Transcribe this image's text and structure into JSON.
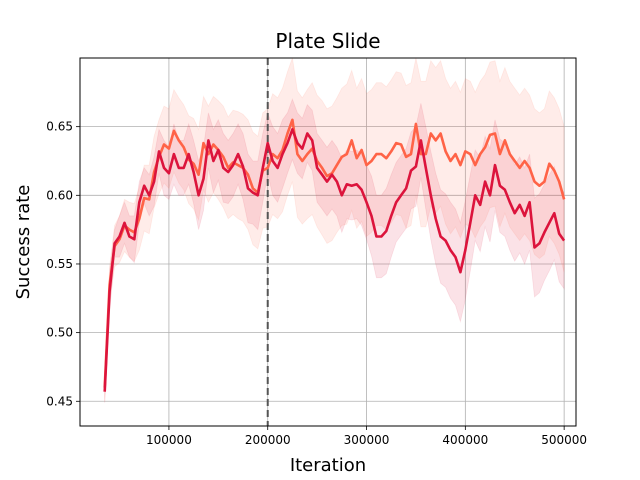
{
  "chart_data": {
    "type": "line",
    "title": "Plate Slide",
    "xlabel": "Iteration",
    "ylabel": "Success rate",
    "xlim": [
      10000,
      512000
    ],
    "ylim": [
      0.432,
      0.7
    ],
    "xticks": [
      100000,
      200000,
      300000,
      400000,
      500000
    ],
    "xtick_labels": [
      "100000",
      "200000",
      "300000",
      "400000",
      "500000"
    ],
    "yticks": [
      0.45,
      0.5,
      0.55,
      0.6,
      0.65
    ],
    "ytick_labels": [
      "0.45",
      "0.50",
      "0.55",
      "0.60",
      "0.65"
    ],
    "grid": true,
    "vline": {
      "x": 200000,
      "style": "dashed",
      "color": "#555555"
    },
    "series": [
      {
        "color": "#dc143c",
        "band_color": "#dc143c",
        "band_opacity": 0.12,
        "x": [
          35000,
          40000,
          45000,
          50000,
          55000,
          60000,
          65000,
          70000,
          75000,
          80000,
          85000,
          90000,
          95000,
          100000,
          105000,
          110000,
          115000,
          120000,
          125000,
          130000,
          135000,
          140000,
          145000,
          150000,
          155000,
          160000,
          165000,
          170000,
          175000,
          180000,
          185000,
          190000,
          195000,
          200000,
          205000,
          210000,
          215000,
          220000,
          225000,
          230000,
          235000,
          240000,
          245000,
          250000,
          255000,
          260000,
          265000,
          270000,
          275000,
          280000,
          285000,
          290000,
          295000,
          300000,
          305000,
          310000,
          315000,
          320000,
          325000,
          330000,
          335000,
          340000,
          345000,
          350000,
          355000,
          360000,
          365000,
          370000,
          375000,
          380000,
          385000,
          390000,
          395000,
          400000,
          405000,
          410000,
          415000,
          420000,
          425000,
          430000,
          435000,
          440000,
          445000,
          450000,
          455000,
          460000,
          465000,
          470000,
          475000,
          480000,
          485000,
          490000,
          495000,
          500000
        ],
        "y": [
          0.457,
          0.53,
          0.565,
          0.57,
          0.58,
          0.57,
          0.568,
          0.595,
          0.607,
          0.6,
          0.61,
          0.632,
          0.62,
          0.616,
          0.63,
          0.62,
          0.62,
          0.63,
          0.617,
          0.6,
          0.612,
          0.64,
          0.625,
          0.633,
          0.62,
          0.617,
          0.622,
          0.63,
          0.621,
          0.605,
          0.602,
          0.6,
          0.62,
          0.638,
          0.625,
          0.62,
          0.63,
          0.638,
          0.648,
          0.638,
          0.634,
          0.645,
          0.64,
          0.62,
          0.615,
          0.61,
          0.615,
          0.61,
          0.6,
          0.608,
          0.607,
          0.608,
          0.604,
          0.595,
          0.585,
          0.57,
          0.57,
          0.574,
          0.585,
          0.595,
          0.6,
          0.605,
          0.618,
          0.621,
          0.64,
          0.62,
          0.6,
          0.583,
          0.57,
          0.567,
          0.56,
          0.555,
          0.544,
          0.56,
          0.58,
          0.6,
          0.593,
          0.61,
          0.6,
          0.622,
          0.607,
          0.604,
          0.595,
          0.587,
          0.593,
          0.585,
          0.595,
          0.562,
          0.565,
          0.573,
          0.58,
          0.587,
          0.572,
          0.567
        ],
        "upper": [
          0.465,
          0.545,
          0.575,
          0.585,
          0.595,
          0.585,
          0.585,
          0.61,
          0.62,
          0.615,
          0.628,
          0.648,
          0.64,
          0.635,
          0.652,
          0.64,
          0.64,
          0.652,
          0.64,
          0.625,
          0.635,
          0.66,
          0.648,
          0.655,
          0.645,
          0.64,
          0.645,
          0.652,
          0.645,
          0.63,
          0.625,
          0.625,
          0.645,
          0.66,
          0.65,
          0.645,
          0.655,
          0.66,
          0.67,
          0.66,
          0.656,
          0.666,
          0.662,
          0.645,
          0.64,
          0.635,
          0.64,
          0.635,
          0.627,
          0.633,
          0.632,
          0.633,
          0.63,
          0.622,
          0.614,
          0.6,
          0.6,
          0.605,
          0.615,
          0.624,
          0.629,
          0.634,
          0.646,
          0.65,
          0.667,
          0.65,
          0.632,
          0.616,
          0.604,
          0.601,
          0.595,
          0.59,
          0.58,
          0.596,
          0.615,
          0.633,
          0.627,
          0.643,
          0.634,
          0.655,
          0.641,
          0.638,
          0.63,
          0.622,
          0.628,
          0.62,
          0.63,
          0.598,
          0.601,
          0.608,
          0.615,
          0.621,
          0.607,
          0.602
        ],
        "lower": [
          0.449,
          0.515,
          0.555,
          0.555,
          0.565,
          0.555,
          0.551,
          0.58,
          0.594,
          0.585,
          0.592,
          0.616,
          0.6,
          0.597,
          0.608,
          0.6,
          0.6,
          0.608,
          0.594,
          0.575,
          0.589,
          0.62,
          0.602,
          0.611,
          0.595,
          0.594,
          0.599,
          0.608,
          0.597,
          0.58,
          0.579,
          0.575,
          0.595,
          0.616,
          0.6,
          0.595,
          0.605,
          0.616,
          0.626,
          0.616,
          0.612,
          0.624,
          0.618,
          0.595,
          0.59,
          0.585,
          0.59,
          0.585,
          0.573,
          0.583,
          0.582,
          0.583,
          0.578,
          0.568,
          0.556,
          0.54,
          0.54,
          0.543,
          0.555,
          0.566,
          0.571,
          0.576,
          0.59,
          0.592,
          0.613,
          0.59,
          0.568,
          0.55,
          0.536,
          0.533,
          0.525,
          0.52,
          0.508,
          0.524,
          0.545,
          0.567,
          0.559,
          0.577,
          0.566,
          0.589,
          0.573,
          0.57,
          0.56,
          0.552,
          0.558,
          0.55,
          0.56,
          0.526,
          0.529,
          0.538,
          0.545,
          0.553,
          0.537,
          0.532
        ]
      },
      {
        "color": "#ff6347",
        "band_color": "#ff6347",
        "band_opacity": 0.12,
        "x": [
          35000,
          40000,
          45000,
          50000,
          55000,
          60000,
          65000,
          70000,
          75000,
          80000,
          85000,
          90000,
          95000,
          100000,
          105000,
          110000,
          115000,
          120000,
          125000,
          130000,
          135000,
          140000,
          145000,
          150000,
          155000,
          160000,
          165000,
          170000,
          175000,
          180000,
          185000,
          190000,
          195000,
          200000,
          205000,
          210000,
          215000,
          220000,
          225000,
          230000,
          235000,
          240000,
          245000,
          250000,
          255000,
          260000,
          265000,
          270000,
          275000,
          280000,
          285000,
          290000,
          295000,
          300000,
          305000,
          310000,
          315000,
          320000,
          325000,
          330000,
          335000,
          340000,
          345000,
          350000,
          355000,
          360000,
          365000,
          370000,
          375000,
          380000,
          385000,
          390000,
          395000,
          400000,
          405000,
          410000,
          415000,
          420000,
          425000,
          430000,
          435000,
          440000,
          445000,
          450000,
          455000,
          460000,
          465000,
          470000,
          475000,
          480000,
          485000,
          490000,
          495000,
          500000
        ],
        "y": [
          0.46,
          0.535,
          0.563,
          0.568,
          0.578,
          0.575,
          0.573,
          0.583,
          0.598,
          0.597,
          0.617,
          0.628,
          0.637,
          0.634,
          0.647,
          0.64,
          0.635,
          0.626,
          0.623,
          0.615,
          0.638,
          0.63,
          0.637,
          0.633,
          0.628,
          0.62,
          0.624,
          0.622,
          0.62,
          0.615,
          0.605,
          0.602,
          0.618,
          0.62,
          0.63,
          0.627,
          0.633,
          0.645,
          0.655,
          0.63,
          0.625,
          0.63,
          0.634,
          0.625,
          0.62,
          0.614,
          0.616,
          0.622,
          0.628,
          0.63,
          0.64,
          0.627,
          0.633,
          0.622,
          0.625,
          0.63,
          0.63,
          0.627,
          0.632,
          0.638,
          0.637,
          0.628,
          0.63,
          0.652,
          0.63,
          0.63,
          0.645,
          0.64,
          0.645,
          0.632,
          0.625,
          0.63,
          0.622,
          0.632,
          0.63,
          0.622,
          0.63,
          0.635,
          0.644,
          0.645,
          0.63,
          0.64,
          0.63,
          0.625,
          0.62,
          0.625,
          0.62,
          0.61,
          0.607,
          0.61,
          0.623,
          0.618,
          0.61,
          0.597
        ],
        "upper": [
          0.47,
          0.548,
          0.578,
          0.585,
          0.597,
          0.595,
          0.594,
          0.606,
          0.622,
          0.622,
          0.643,
          0.655,
          0.665,
          0.663,
          0.677,
          0.671,
          0.666,
          0.658,
          0.656,
          0.648,
          0.672,
          0.665,
          0.672,
          0.669,
          0.665,
          0.657,
          0.662,
          0.661,
          0.659,
          0.655,
          0.646,
          0.643,
          0.66,
          0.663,
          0.674,
          0.671,
          0.678,
          0.69,
          0.7,
          0.676,
          0.671,
          0.677,
          0.682,
          0.673,
          0.669,
          0.663,
          0.665,
          0.671,
          0.678,
          0.681,
          0.691,
          0.678,
          0.685,
          0.674,
          0.677,
          0.682,
          0.682,
          0.679,
          0.684,
          0.69,
          0.689,
          0.68,
          0.682,
          0.7,
          0.683,
          0.683,
          0.698,
          0.693,
          0.698,
          0.685,
          0.678,
          0.683,
          0.675,
          0.685,
          0.683,
          0.675,
          0.683,
          0.688,
          0.697,
          0.698,
          0.683,
          0.693,
          0.683,
          0.678,
          0.673,
          0.678,
          0.673,
          0.663,
          0.66,
          0.663,
          0.676,
          0.671,
          0.663,
          0.65
        ],
        "lower": [
          0.45,
          0.522,
          0.548,
          0.551,
          0.559,
          0.555,
          0.552,
          0.56,
          0.574,
          0.572,
          0.591,
          0.601,
          0.609,
          0.605,
          0.617,
          0.609,
          0.604,
          0.594,
          0.59,
          0.582,
          0.604,
          0.595,
          0.602,
          0.597,
          0.591,
          0.583,
          0.586,
          0.583,
          0.581,
          0.575,
          0.564,
          0.561,
          0.576,
          0.577,
          0.586,
          0.583,
          0.588,
          0.6,
          0.61,
          0.584,
          0.579,
          0.583,
          0.586,
          0.577,
          0.571,
          0.565,
          0.567,
          0.573,
          0.578,
          0.579,
          0.589,
          0.576,
          0.581,
          0.57,
          0.573,
          0.578,
          0.578,
          0.575,
          0.58,
          0.586,
          0.585,
          0.576,
          0.578,
          0.6,
          0.577,
          0.577,
          0.592,
          0.587,
          0.592,
          0.579,
          0.572,
          0.577,
          0.569,
          0.579,
          0.577,
          0.569,
          0.577,
          0.582,
          0.591,
          0.592,
          0.577,
          0.587,
          0.577,
          0.572,
          0.567,
          0.572,
          0.567,
          0.557,
          0.554,
          0.557,
          0.57,
          0.565,
          0.557,
          0.544
        ]
      }
    ]
  }
}
